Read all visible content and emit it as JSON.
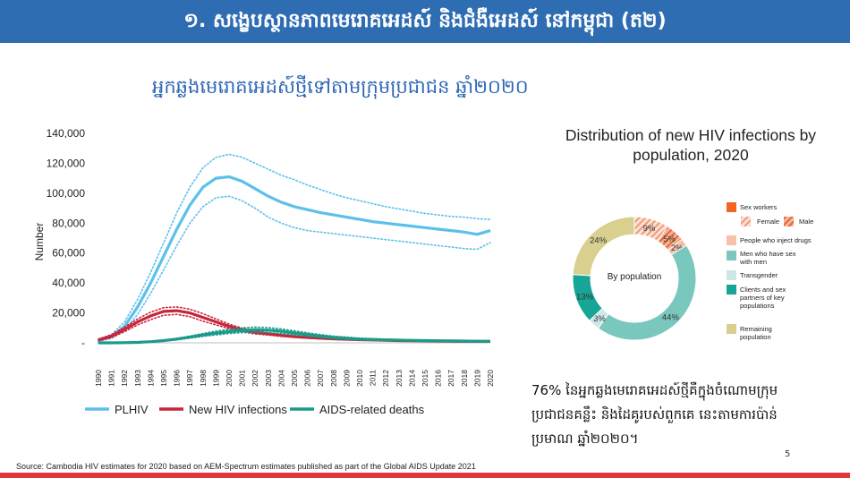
{
  "header": {
    "title": "១. សង្ខេបស្ថានភាពមេរោគអេដស៍ និងជំងឺអេដស៍ នៅកម្ពុជា (ត២)"
  },
  "subtitle": "អ្នកឆ្លងមេរោគអេដស៍ថ្មីទៅតាមក្រុមប្រជាជន ឆ្នាំ២០២០",
  "note": "76% នៃអ្នកឆ្លងមេរោគអេដស៍ថ្មីគឺក្នុងចំណោមក្រុមប្រជាជនគន្លឹះ និងដៃគូរបស់ពួកគេ នេះតាមការប៉ាន់ប្រមាណ ឆ្នាំ២០២០។",
  "page_number": "5",
  "source": "Source: Cambodia HIV estimates for 2020 based on  AEM-Spectrum  estimates published as part of the Global AIDS Update 2021",
  "chart_data": [
    {
      "type": "line",
      "title": "",
      "ylabel": "Number",
      "xlabel": "",
      "ylim": [
        0,
        140000
      ],
      "yticks": [
        0,
        20000,
        40000,
        60000,
        80000,
        100000,
        120000,
        140000
      ],
      "ytick_labels": [
        "-",
        "20,000",
        "40,000",
        "60,000",
        "80,000",
        "100,000",
        "120,000",
        "140,000"
      ],
      "x": [
        1990,
        1991,
        1992,
        1993,
        1994,
        1995,
        1996,
        1997,
        1998,
        1999,
        2000,
        2001,
        2002,
        2003,
        2004,
        2005,
        2006,
        2007,
        2008,
        2009,
        2010,
        2011,
        2012,
        2013,
        2014,
        2015,
        2016,
        2017,
        2018,
        2019,
        2020
      ],
      "legend_position": "bottom",
      "series": [
        {
          "name": "PLHIV",
          "color": "#5bc0ea",
          "values": [
            1500,
            4000,
            11000,
            24000,
            40000,
            58000,
            76000,
            92000,
            104000,
            110000,
            111000,
            108000,
            103000,
            98000,
            94000,
            91000,
            89000,
            87000,
            85500,
            84000,
            82500,
            81000,
            80000,
            79000,
            78000,
            77000,
            76000,
            75000,
            74000,
            72500,
            75000
          ],
          "upper": [
            2000,
            5500,
            14000,
            29000,
            47000,
            67000,
            87000,
            104000,
            117000,
            124000,
            126000,
            124000,
            120000,
            116000,
            112000,
            109000,
            105500,
            102500,
            99500,
            97000,
            95000,
            93000,
            91000,
            89500,
            88000,
            86500,
            85500,
            84500,
            84000,
            83000,
            82500
          ],
          "lower": [
            1000,
            3000,
            8000,
            19000,
            33000,
            49000,
            65000,
            80000,
            91000,
            97000,
            98000,
            95000,
            90000,
            84000,
            80000,
            77000,
            75000,
            74000,
            73000,
            72000,
            71000,
            70000,
            69000,
            68000,
            67000,
            66000,
            65000,
            64000,
            63000,
            62500,
            67000
          ]
        },
        {
          "name": "New HIV infections",
          "color": "#c8253a",
          "values": [
            2000,
            4500,
            9000,
            14000,
            18000,
            21000,
            21500,
            20000,
            17000,
            14000,
            11000,
            8500,
            7000,
            6000,
            5000,
            4200,
            3600,
            3100,
            2700,
            2400,
            2100,
            1900,
            1700,
            1500,
            1400,
            1300,
            1200,
            1100,
            1000,
            1000,
            1000
          ],
          "upper": [
            2500,
            5500,
            10500,
            16000,
            20500,
            23500,
            24000,
            22500,
            19500,
            16000,
            12500,
            9800,
            8000,
            6800,
            5700,
            4800,
            4100,
            3600,
            3100,
            2800,
            2500,
            2200,
            2000,
            1800,
            1700,
            1550,
            1450,
            1350,
            1250,
            1200,
            1200
          ],
          "lower": [
            1500,
            3500,
            7500,
            12000,
            15500,
            18500,
            19000,
            17500,
            14500,
            12000,
            9500,
            7300,
            6000,
            5200,
            4300,
            3600,
            3100,
            2600,
            2300,
            2000,
            1800,
            1600,
            1450,
            1300,
            1200,
            1100,
            1000,
            950,
            850,
            800,
            800
          ]
        },
        {
          "name": "AIDS-related deaths",
          "color": "#1a9b8a",
          "values": [
            0,
            0,
            100,
            300,
            800,
            1500,
            2500,
            3800,
            5200,
            6500,
            7500,
            8300,
            8800,
            8500,
            7800,
            6600,
            5500,
            4500,
            3600,
            3000,
            2500,
            2200,
            2000,
            1800,
            1600,
            1500,
            1400,
            1300,
            1200,
            1100,
            1000
          ],
          "upper": [
            0,
            0,
            150,
            400,
            1000,
            1800,
            3000,
            4500,
            6200,
            7800,
            9000,
            10000,
            10500,
            10200,
            9300,
            8000,
            6700,
            5500,
            4500,
            3800,
            3200,
            2800,
            2500,
            2300,
            2100,
            1900,
            1800,
            1700,
            1550,
            1400,
            1300
          ],
          "lower": [
            0,
            0,
            50,
            200,
            600,
            1200,
            2000,
            3100,
            4300,
            5300,
            6200,
            6800,
            7200,
            6900,
            6300,
            5300,
            4400,
            3600,
            2900,
            2400,
            2000,
            1700,
            1550,
            1400,
            1250,
            1150,
            1050,
            1000,
            900,
            850,
            750
          ]
        }
      ]
    },
    {
      "type": "pie",
      "title": "Distribution of new HIV infections by population, 2020",
      "center_label": "By population",
      "slices": [
        {
          "label": "Sex workers - Female",
          "value": 9,
          "color": "#f09a72",
          "hatched": true
        },
        {
          "label": "Sex workers - Male",
          "value": 5,
          "color": "#ec7c52",
          "hatched": true
        },
        {
          "label": "People who inject drugs",
          "value": 2,
          "color": "#f6c0aa"
        },
        {
          "label": "Men who have sex with men",
          "value": 44,
          "color": "#79c7bd"
        },
        {
          "label": "Transgender",
          "value": 3,
          "color": "#cde7e7"
        },
        {
          "label": "Clients and sex partners of key populations",
          "value": 13,
          "color": "#16a596"
        },
        {
          "label": "Remaining population",
          "value": 24,
          "color": "#d9cf8e"
        }
      ],
      "legend": {
        "sex_workers": "Sex workers",
        "female": "Female",
        "male": "Male",
        "pwid": "People who inject drugs",
        "msm": "Men who have sex with men",
        "transgender": "Transgender",
        "clients": "Clients and sex partners of key populations",
        "remaining": "Remaining population"
      },
      "legend_colors": {
        "sex_workers": "#f26522",
        "pwid": "#f6c0aa",
        "msm": "#79c7bd",
        "transgender": "#cde7e7",
        "clients": "#16a596",
        "remaining": "#d9cf8e"
      }
    }
  ]
}
